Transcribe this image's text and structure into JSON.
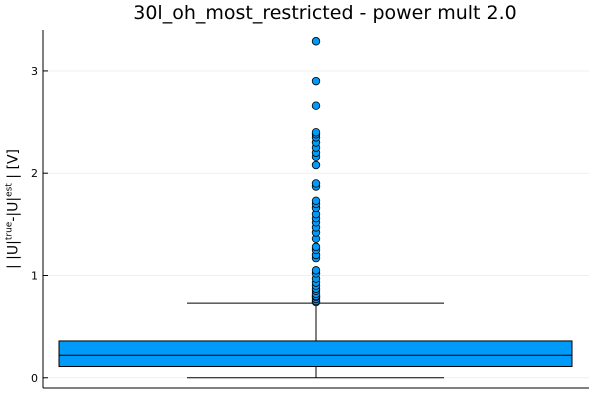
{
  "chart_data": {
    "type": "box",
    "title": "30l_oh_most_restricted - power mult 2.0",
    "ylabel": {
      "prefix": "| |U|",
      "sup1": "true",
      "mid": "-|U|",
      "sup2": "est",
      "suffix": " | [V]"
    },
    "xlabel": "",
    "ylim": [
      -0.1,
      3.4
    ],
    "yticks": [
      0,
      1,
      2,
      3
    ],
    "grid": true,
    "legend": "none",
    "box": {
      "color": "#009af9",
      "whisker_low": 0.0,
      "q1": 0.11,
      "median": 0.22,
      "q3": 0.36,
      "whisker_high": 0.73
    },
    "outliers": [
      0.74,
      0.75,
      0.77,
      0.79,
      0.8,
      0.82,
      0.85,
      0.87,
      0.9,
      0.93,
      0.97,
      1.02,
      1.05,
      1.17,
      1.2,
      1.25,
      1.28,
      1.36,
      1.42,
      1.47,
      1.52,
      1.56,
      1.6,
      1.66,
      1.7,
      1.73,
      1.87,
      1.9,
      2.08,
      2.16,
      2.2,
      2.25,
      2.3,
      2.35,
      2.38,
      2.4,
      2.66,
      2.9,
      3.29
    ]
  }
}
